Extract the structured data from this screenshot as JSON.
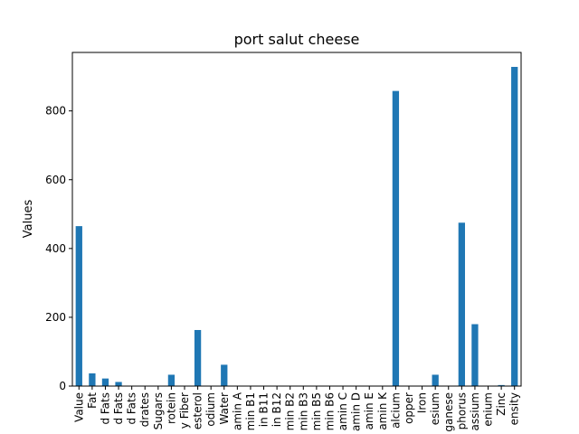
{
  "chart_data": {
    "type": "bar",
    "title": "port salut cheese",
    "xlabel": "",
    "ylabel": "Values",
    "ylim": [
      0,
      970
    ],
    "yticks": [
      0,
      200,
      400,
      600,
      800
    ],
    "grid": false,
    "legend": "none",
    "bar_color": "#1f77b4",
    "categories": [
      "Value",
      "Fat",
      "d Fats",
      "d Fats",
      "d Fats",
      "drates",
      "Sugars",
      "rotein",
      "y Fiber",
      "esterol",
      "odium",
      "Water",
      "amin A",
      "min B1",
      "in B11",
      "in B12",
      "min B2",
      "min B3",
      "min B5",
      "min B6",
      "amin C",
      "amin D",
      "amin E",
      "amin K",
      "alcium",
      "opper",
      "Iron",
      "esium",
      "ganese",
      "phorus",
      "assium",
      "enium",
      "Zinc",
      "ensity"
    ],
    "values": [
      465,
      37,
      22,
      12,
      0,
      0,
      0,
      33,
      0,
      163,
      0,
      62,
      0,
      0,
      0,
      0,
      0,
      0,
      0,
      0,
      0,
      0,
      0,
      0,
      858,
      0,
      0,
      33,
      0,
      475,
      180,
      0,
      3,
      928
    ]
  }
}
